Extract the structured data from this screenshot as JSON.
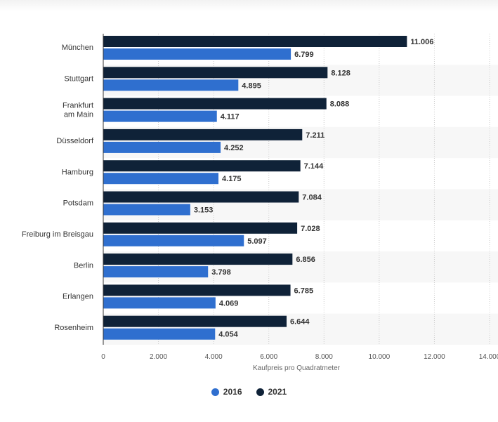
{
  "chart_data": {
    "type": "bar",
    "orientation": "horizontal",
    "categories": [
      "München",
      "Stuttgart",
      "Frankfurt am Main",
      "Düsseldorf",
      "Hamburg",
      "Potsdam",
      "Freiburg im Breisgau",
      "Berlin",
      "Erlangen",
      "Rosenheim"
    ],
    "category_lines": [
      [
        "München"
      ],
      [
        "Stuttgart"
      ],
      [
        "Frankfurt",
        "am Main"
      ],
      [
        "Düsseldorf"
      ],
      [
        "Hamburg"
      ],
      [
        "Potsdam"
      ],
      [
        "Freiburg im Breisgau"
      ],
      [
        "Berlin"
      ],
      [
        "Erlangen"
      ],
      [
        "Rosenheim"
      ]
    ],
    "series": [
      {
        "name": "2021",
        "color": "#0f2238",
        "values": [
          11006,
          8128,
          8088,
          7211,
          7144,
          7084,
          7028,
          6856,
          6785,
          6644
        ],
        "labels": [
          "11.006",
          "8.128",
          "8.088",
          "7.211",
          "7.144",
          "7.084",
          "7.028",
          "6.856",
          "6.785",
          "6.644"
        ]
      },
      {
        "name": "2016",
        "color": "#2f6fcf",
        "values": [
          6799,
          4895,
          4117,
          4252,
          4175,
          3153,
          5097,
          3798,
          4069,
          4054
        ],
        "labels": [
          "6.799",
          "4.895",
          "4.117",
          "4.252",
          "4.175",
          "3.153",
          "5.097",
          "3.798",
          "4.069",
          "4.054"
        ]
      }
    ],
    "xlim": [
      0,
      14000
    ],
    "xticks": [
      0,
      2000,
      4000,
      6000,
      8000,
      10000,
      12000,
      14000
    ],
    "xtick_labels": [
      "0",
      "2.000",
      "4.000",
      "6.000",
      "8.000",
      "10.000",
      "12.000",
      "14.000"
    ],
    "xlabel": "Kaufpreis pro Quadratmeter",
    "grid": "vertical-dotted",
    "legend_position": "bottom-center",
    "legend": [
      {
        "name": "2016",
        "color": "#2f6fcf"
      },
      {
        "name": "2021",
        "color": "#0f2238"
      }
    ]
  }
}
